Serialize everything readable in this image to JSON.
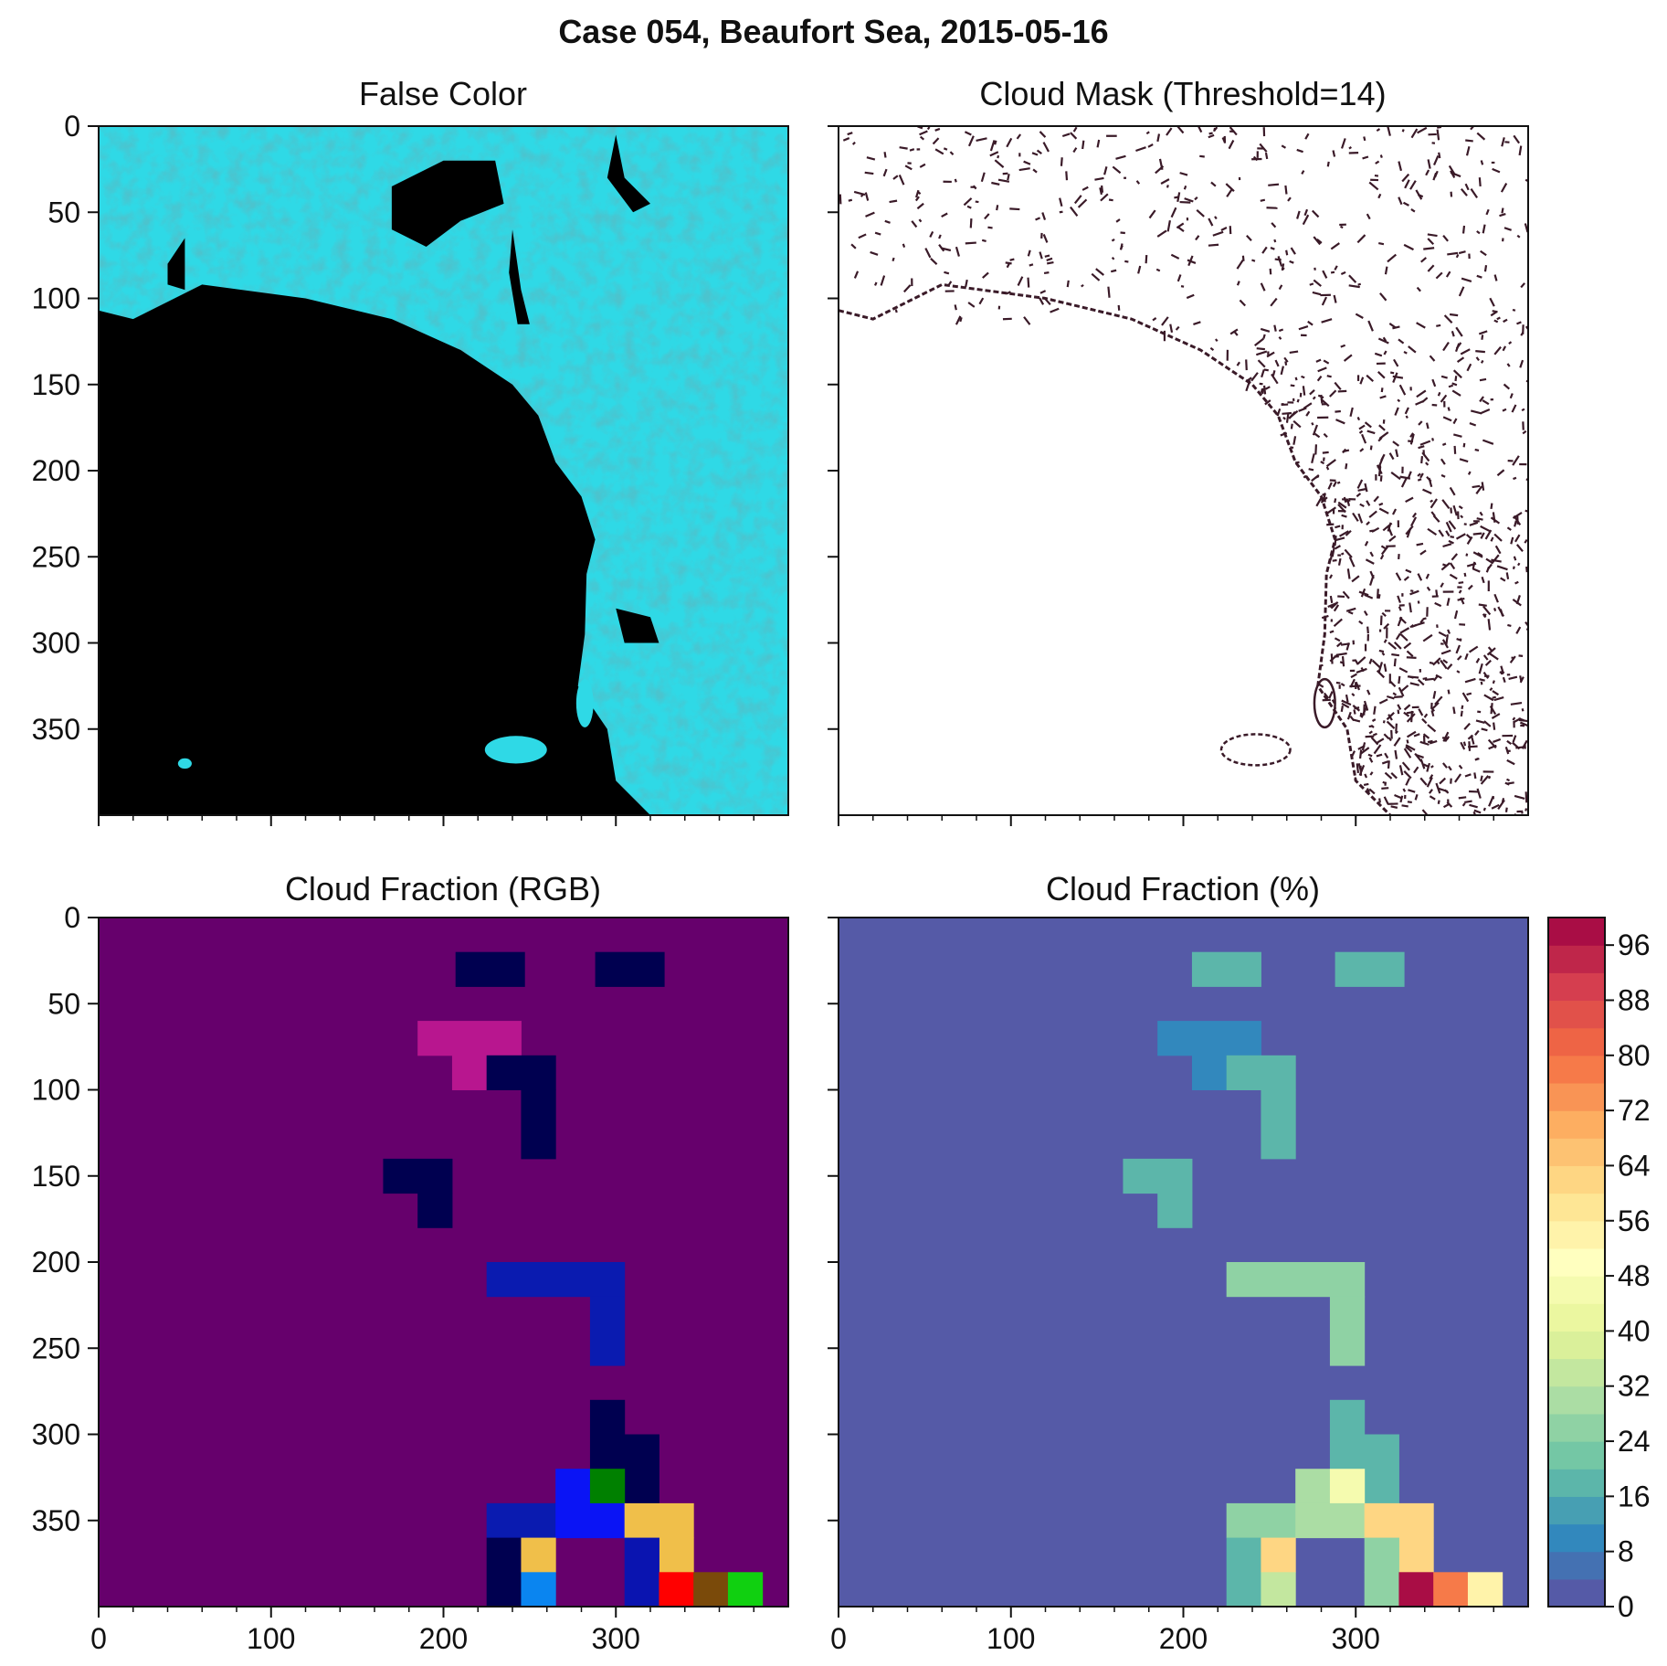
{
  "figure": {
    "title": "Case 054, Beaufort Sea, 2015-05-16"
  },
  "chart_data": [
    {
      "type": "heatmap",
      "title": "False Color",
      "xlabel": "",
      "ylabel": "",
      "xlim": [
        0,
        400
      ],
      "ylim": [
        400,
        0
      ],
      "xticks": [
        0,
        100,
        200,
        300
      ],
      "yticks": [
        0,
        50,
        100,
        150,
        200,
        250,
        300,
        350
      ],
      "x_tick_labels_shown": false,
      "y_tick_labels_shown": true,
      "colors": {
        "ice": "#2fd9e6",
        "ice_dark": "#1bb9c8",
        "open_water": "#000000"
      },
      "ice_edge": [
        [
          0,
          107
        ],
        [
          20,
          112
        ],
        [
          60,
          92
        ],
        [
          120,
          100
        ],
        [
          170,
          112
        ],
        [
          210,
          130
        ],
        [
          240,
          150
        ],
        [
          255,
          168
        ],
        [
          265,
          195
        ],
        [
          280,
          215
        ],
        [
          288,
          240
        ],
        [
          283,
          260
        ],
        [
          282,
          295
        ],
        [
          278,
          325
        ],
        [
          295,
          350
        ],
        [
          300,
          380
        ],
        [
          320,
          400
        ]
      ],
      "open_water_features": [
        {
          "kind": "lead",
          "points": [
            [
              170,
              35
            ],
            [
              200,
              20
            ],
            [
              230,
              20
            ],
            [
              235,
              45
            ],
            [
              210,
              55
            ],
            [
              190,
              70
            ],
            [
              170,
              60
            ]
          ]
        },
        {
          "kind": "lead",
          "points": [
            [
              300,
              5
            ],
            [
              305,
              30
            ],
            [
              320,
              45
            ],
            [
              310,
              50
            ],
            [
              295,
              30
            ]
          ]
        },
        {
          "kind": "lead",
          "points": [
            [
              50,
              65
            ],
            [
              40,
              80
            ],
            [
              40,
              92
            ],
            [
              50,
              95
            ]
          ]
        },
        {
          "kind": "lead",
          "points": [
            [
              240,
              60
            ],
            [
              245,
              95
            ],
            [
              250,
              115
            ],
            [
              243,
              115
            ],
            [
              238,
              85
            ]
          ]
        },
        {
          "kind": "lead",
          "points": [
            [
              300,
              280
            ],
            [
              320,
              285
            ],
            [
              325,
              300
            ],
            [
              305,
              300
            ]
          ]
        }
      ]
    },
    {
      "type": "heatmap",
      "title": "Cloud Mask (Threshold=14)",
      "xlabel": "",
      "ylabel": "",
      "xlim": [
        0,
        400
      ],
      "ylim": [
        400,
        0
      ],
      "xticks": [
        0,
        100,
        200,
        300
      ],
      "yticks": [
        0,
        50,
        100,
        150,
        200,
        250,
        300,
        350
      ],
      "x_tick_labels_shown": false,
      "y_tick_labels_shown": false,
      "colors": {
        "mask": "#3a1a28",
        "background": "#ffffff"
      }
    },
    {
      "type": "heatmap",
      "title": "Cloud Fraction (RGB)",
      "xlabel": "",
      "ylabel": "",
      "xlim": [
        0,
        400
      ],
      "ylim": [
        400,
        0
      ],
      "xticks": [
        0,
        100,
        200,
        300
      ],
      "yticks": [
        0,
        50,
        100,
        150,
        200,
        250,
        300,
        350
      ],
      "x_tick_labels_shown": true,
      "y_tick_labels_shown": true,
      "block_size": 20,
      "background": "#66006c",
      "cells": [
        {
          "x": 207,
          "y": 20,
          "w": 40,
          "h": 20,
          "color": "#000050"
        },
        {
          "x": 288,
          "y": 20,
          "w": 40,
          "h": 20,
          "color": "#000050"
        },
        {
          "x": 185,
          "y": 60,
          "w": 60,
          "h": 20,
          "color": "#b8168f"
        },
        {
          "x": 205,
          "y": 80,
          "w": 20,
          "h": 20,
          "color": "#b8168f"
        },
        {
          "x": 225,
          "y": 80,
          "w": 40,
          "h": 20,
          "color": "#000050"
        },
        {
          "x": 245,
          "y": 100,
          "w": 20,
          "h": 40,
          "color": "#000050"
        },
        {
          "x": 165,
          "y": 140,
          "w": 40,
          "h": 20,
          "color": "#000050"
        },
        {
          "x": 185,
          "y": 160,
          "w": 20,
          "h": 20,
          "color": "#000050"
        },
        {
          "x": 225,
          "y": 200,
          "w": 80,
          "h": 20,
          "color": "#0a1bb0"
        },
        {
          "x": 285,
          "y": 220,
          "w": 20,
          "h": 40,
          "color": "#0a1bb0"
        },
        {
          "x": 285,
          "y": 280,
          "w": 20,
          "h": 40,
          "color": "#000050"
        },
        {
          "x": 305,
          "y": 300,
          "w": 20,
          "h": 60,
          "color": "#000050"
        },
        {
          "x": 265,
          "y": 320,
          "w": 20,
          "h": 20,
          "color": "#0a14f5"
        },
        {
          "x": 285,
          "y": 320,
          "w": 20,
          "h": 20,
          "color": "#008000"
        },
        {
          "x": 225,
          "y": 340,
          "w": 40,
          "h": 20,
          "color": "#0a1bb0"
        },
        {
          "x": 265,
          "y": 340,
          "w": 40,
          "h": 20,
          "color": "#0a14f5"
        },
        {
          "x": 305,
          "y": 340,
          "w": 40,
          "h": 20,
          "color": "#f0bf4a"
        },
        {
          "x": 325,
          "y": 360,
          "w": 20,
          "h": 20,
          "color": "#f0bf4a"
        },
        {
          "x": 225,
          "y": 360,
          "w": 20,
          "h": 40,
          "color": "#000050"
        },
        {
          "x": 245,
          "y": 360,
          "w": 20,
          "h": 20,
          "color": "#f0bf4a"
        },
        {
          "x": 245,
          "y": 380,
          "w": 20,
          "h": 20,
          "color": "#0a85f0"
        },
        {
          "x": 305,
          "y": 360,
          "w": 20,
          "h": 40,
          "color": "#0a14b0"
        },
        {
          "x": 325,
          "y": 380,
          "w": 20,
          "h": 20,
          "color": "#ff0000"
        },
        {
          "x": 345,
          "y": 380,
          "w": 20,
          "h": 20,
          "color": "#7a4a0a"
        },
        {
          "x": 365,
          "y": 380,
          "w": 20,
          "h": 20,
          "color": "#10d010"
        }
      ]
    },
    {
      "type": "heatmap",
      "title": "Cloud Fraction (%)",
      "xlabel": "",
      "ylabel": "",
      "xlim": [
        0,
        400
      ],
      "ylim": [
        400,
        0
      ],
      "xticks": [
        0,
        100,
        200,
        300
      ],
      "yticks": [
        0,
        50,
        100,
        150,
        200,
        250,
        300,
        350
      ],
      "x_tick_labels_shown": true,
      "y_tick_labels_shown": false,
      "background_value": 0,
      "cells": [
        {
          "x": 205,
          "y": 20,
          "w": 40,
          "h": 20,
          "value": 18
        },
        {
          "x": 288,
          "y": 20,
          "w": 40,
          "h": 20,
          "value": 18
        },
        {
          "x": 185,
          "y": 60,
          "w": 60,
          "h": 20,
          "value": 10
        },
        {
          "x": 205,
          "y": 80,
          "w": 20,
          "h": 20,
          "value": 10
        },
        {
          "x": 225,
          "y": 80,
          "w": 40,
          "h": 20,
          "value": 18
        },
        {
          "x": 245,
          "y": 100,
          "w": 20,
          "h": 40,
          "value": 18
        },
        {
          "x": 165,
          "y": 140,
          "w": 40,
          "h": 20,
          "value": 18
        },
        {
          "x": 185,
          "y": 160,
          "w": 20,
          "h": 20,
          "value": 18
        },
        {
          "x": 225,
          "y": 200,
          "w": 80,
          "h": 20,
          "value": 24
        },
        {
          "x": 285,
          "y": 220,
          "w": 20,
          "h": 40,
          "value": 24
        },
        {
          "x": 285,
          "y": 280,
          "w": 20,
          "h": 40,
          "value": 16
        },
        {
          "x": 305,
          "y": 300,
          "w": 20,
          "h": 40,
          "value": 16
        },
        {
          "x": 265,
          "y": 320,
          "w": 20,
          "h": 20,
          "value": 30
        },
        {
          "x": 285,
          "y": 320,
          "w": 20,
          "h": 20,
          "value": 46
        },
        {
          "x": 225,
          "y": 340,
          "w": 40,
          "h": 20,
          "value": 24
        },
        {
          "x": 265,
          "y": 340,
          "w": 40,
          "h": 20,
          "value": 30
        },
        {
          "x": 305,
          "y": 340,
          "w": 40,
          "h": 20,
          "value": 62
        },
        {
          "x": 325,
          "y": 360,
          "w": 20,
          "h": 20,
          "value": 62
        },
        {
          "x": 225,
          "y": 360,
          "w": 20,
          "h": 40,
          "value": 18
        },
        {
          "x": 245,
          "y": 360,
          "w": 20,
          "h": 20,
          "value": 62
        },
        {
          "x": 245,
          "y": 380,
          "w": 20,
          "h": 20,
          "value": 34
        },
        {
          "x": 305,
          "y": 360,
          "w": 20,
          "h": 20,
          "value": 24
        },
        {
          "x": 305,
          "y": 380,
          "w": 20,
          "h": 20,
          "value": 24
        },
        {
          "x": 325,
          "y": 380,
          "w": 20,
          "h": 20,
          "value": 100
        },
        {
          "x": 345,
          "y": 380,
          "w": 20,
          "h": 20,
          "value": 78
        },
        {
          "x": 365,
          "y": 380,
          "w": 20,
          "h": 20,
          "value": 54
        }
      ],
      "colorbar": {
        "cmap": "Spectral_r",
        "vmin": 0,
        "vmax": 100,
        "levels": 25,
        "ticks": [
          0,
          8,
          16,
          24,
          32,
          40,
          48,
          56,
          64,
          72,
          80,
          88,
          96
        ],
        "tick_labels": [
          "0",
          "8",
          "16",
          "24",
          "32",
          "40",
          "48",
          "56",
          "64",
          "72",
          "80",
          "88",
          "96"
        ]
      }
    }
  ]
}
